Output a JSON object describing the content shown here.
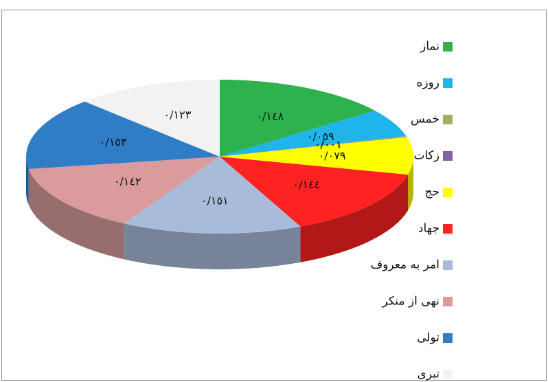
{
  "chart_data": {
    "type": "pie3d",
    "categories": [
      "نماز",
      "روزه",
      "خمس",
      "زکات",
      "حج",
      "جهاد",
      "امر به معروف",
      "نهی از منکر",
      "تولی",
      "تبری"
    ],
    "values": [
      0.148,
      0.059,
      0.001,
      0.001,
      0.079,
      0.144,
      0.151,
      0.142,
      0.153,
      0.123
    ],
    "value_labels": [
      "٠/١٤٨",
      "٠/٠٥٩",
      "٠/٠٠١",
      "٠/٠٠١",
      "٠/٠٧٩",
      "٠/١٤٤",
      "٠/١٥١",
      "٠/١٤٢",
      "٠/١٥٣",
      "٠/١٢٣"
    ],
    "colors": [
      "#2db24e",
      "#1fb4ea",
      "#9bb263",
      "#8064a2",
      "#ffff00",
      "#ff2222",
      "#a9bbdb",
      "#d99b9b",
      "#2f7dc6",
      "#f2f2f2"
    ],
    "legend": "right"
  }
}
